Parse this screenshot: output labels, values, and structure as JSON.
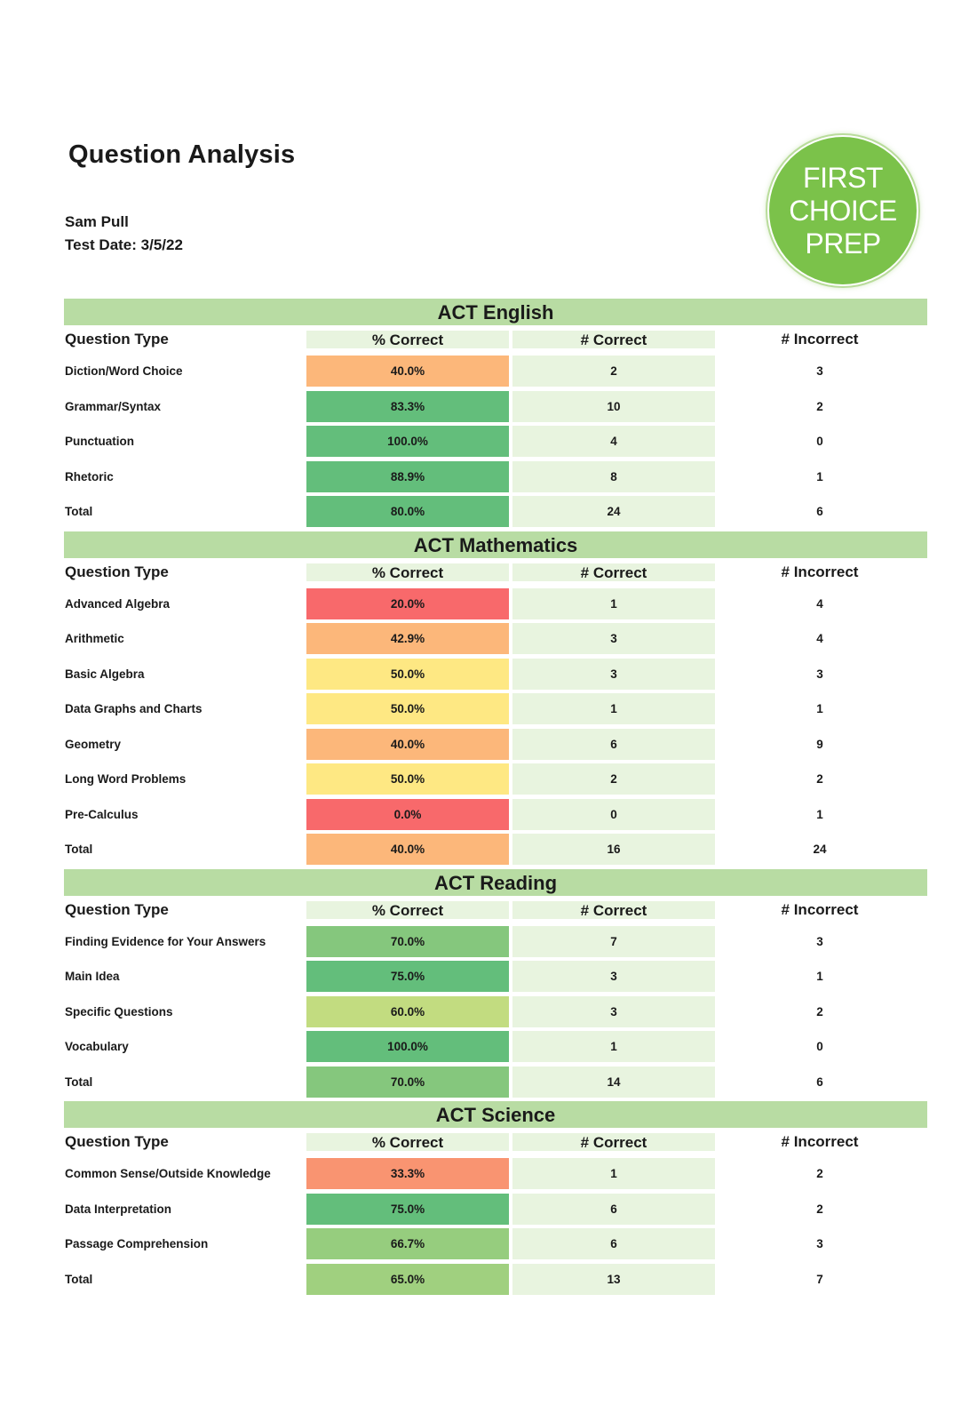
{
  "title": "Question Analysis",
  "student": {
    "name": "Sam Pull",
    "test_date": "Test Date: 3/5/22"
  },
  "logo": {
    "lines": [
      "FIRST",
      "CHOICE",
      "PREP"
    ],
    "color": "#7bc24a"
  },
  "column_headers": {
    "type": "Question Type",
    "pct": "% Correct",
    "correct": "# Correct",
    "incorrect": "# Incorrect"
  },
  "colors": {
    "banner": "#b8dca3",
    "light_cell": "#e8f4df",
    "scale": {
      "red": "#f8696b",
      "salmon": "#f99471",
      "orange": "#fcb77a",
      "yellow": "#fee883",
      "lime": "#c2dc80",
      "light_green": "#85c77d",
      "green": "#63be7b"
    }
  },
  "sections": [
    {
      "title": "ACT English",
      "rows": [
        {
          "type": "Diction/Word Choice",
          "pct": "40.0%",
          "correct": "2",
          "incorrect": "3",
          "color": "#fcb77a"
        },
        {
          "type": "Grammar/Syntax",
          "pct": "83.3%",
          "correct": "10",
          "incorrect": "2",
          "color": "#63be7b"
        },
        {
          "type": "Punctuation",
          "pct": "100.0%",
          "correct": "4",
          "incorrect": "0",
          "color": "#63be7b"
        },
        {
          "type": "Rhetoric",
          "pct": "88.9%",
          "correct": "8",
          "incorrect": "1",
          "color": "#63be7b"
        },
        {
          "type": "Total",
          "pct": "80.0%",
          "correct": "24",
          "incorrect": "6",
          "color": "#63be7b"
        }
      ]
    },
    {
      "title": "ACT Mathematics",
      "rows": [
        {
          "type": "Advanced Algebra",
          "pct": "20.0%",
          "correct": "1",
          "incorrect": "4",
          "color": "#f8696b"
        },
        {
          "type": "Arithmetic",
          "pct": "42.9%",
          "correct": "3",
          "incorrect": "4",
          "color": "#fcb77a"
        },
        {
          "type": "Basic Algebra",
          "pct": "50.0%",
          "correct": "3",
          "incorrect": "3",
          "color": "#fee883"
        },
        {
          "type": "Data Graphs and Charts",
          "pct": "50.0%",
          "correct": "1",
          "incorrect": "1",
          "color": "#fee883"
        },
        {
          "type": "Geometry",
          "pct": "40.0%",
          "correct": "6",
          "incorrect": "9",
          "color": "#fcb77a"
        },
        {
          "type": "Long Word Problems",
          "pct": "50.0%",
          "correct": "2",
          "incorrect": "2",
          "color": "#fee883"
        },
        {
          "type": "Pre-Calculus",
          "pct": "0.0%",
          "correct": "0",
          "incorrect": "1",
          "color": "#f8696b"
        },
        {
          "type": "Total",
          "pct": "40.0%",
          "correct": "16",
          "incorrect": "24",
          "color": "#fcb77a"
        }
      ]
    },
    {
      "title": "ACT Reading",
      "rows": [
        {
          "type": "Finding Evidence for Your Answers",
          "pct": "70.0%",
          "correct": "7",
          "incorrect": "3",
          "color": "#85c77d"
        },
        {
          "type": "Main Idea",
          "pct": "75.0%",
          "correct": "3",
          "incorrect": "1",
          "color": "#63be7b"
        },
        {
          "type": "Specific Questions",
          "pct": "60.0%",
          "correct": "3",
          "incorrect": "2",
          "color": "#c2dc80"
        },
        {
          "type": "Vocabulary",
          "pct": "100.0%",
          "correct": "1",
          "incorrect": "0",
          "color": "#63be7b"
        },
        {
          "type": "Total",
          "pct": "70.0%",
          "correct": "14",
          "incorrect": "6",
          "color": "#85c77d"
        }
      ]
    },
    {
      "title": "ACT Science",
      "rows": [
        {
          "type": "Common Sense/Outside Knowledge",
          "pct": "33.3%",
          "correct": "1",
          "incorrect": "2",
          "color": "#f99471"
        },
        {
          "type": "Data Interpretation",
          "pct": "75.0%",
          "correct": "6",
          "incorrect": "2",
          "color": "#63be7b"
        },
        {
          "type": "Passage Comprehension",
          "pct": "66.7%",
          "correct": "6",
          "incorrect": "3",
          "color": "#96cd7e"
        },
        {
          "type": "Total",
          "pct": "65.0%",
          "correct": "13",
          "incorrect": "7",
          "color": "#a0d07f"
        }
      ]
    }
  ]
}
